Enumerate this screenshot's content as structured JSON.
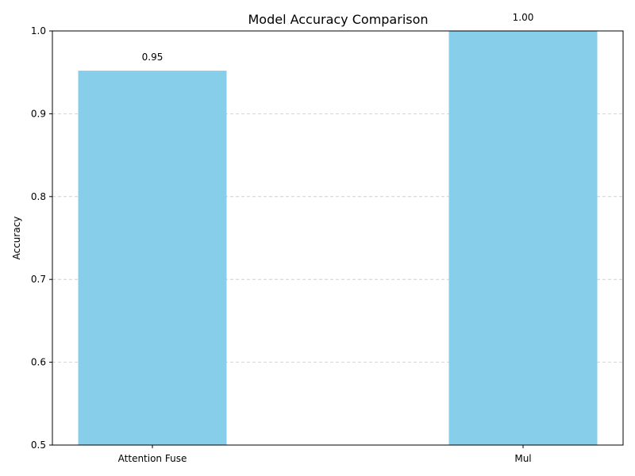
{
  "chart_data": {
    "type": "bar",
    "title": "Model Accuracy Comparison",
    "xlabel": "",
    "ylabel": "Accuracy",
    "categories": [
      "Attention Fuse",
      "Mul"
    ],
    "values": [
      0.952,
      1.0
    ],
    "value_labels": [
      "0.95",
      "1.00"
    ],
    "ylim": [
      0.5,
      1.0
    ],
    "yticks": [
      0.5,
      0.6,
      0.7,
      0.8,
      0.9,
      1.0
    ],
    "ytick_labels": [
      "0.5",
      "0.6",
      "0.7",
      "0.8",
      "0.9",
      "1.0"
    ],
    "grid": "y-dashed",
    "bar_color": "#87ceeb"
  }
}
